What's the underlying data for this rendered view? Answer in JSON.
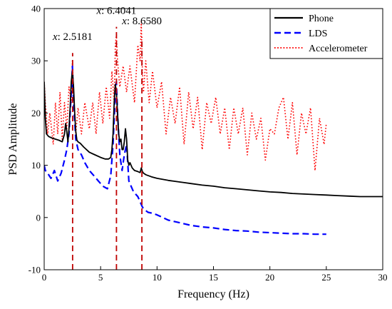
{
  "chart_data": {
    "type": "line",
    "xlabel": "Frequency (Hz)",
    "ylabel": "PSD Amplitude",
    "xlim": [
      0,
      30
    ],
    "ylim": [
      -10,
      40
    ],
    "xticks": [
      0,
      5,
      10,
      15,
      20,
      25,
      30
    ],
    "yticks": [
      -10,
      0,
      10,
      20,
      30,
      40
    ],
    "grid": false,
    "legend_position": "top-right",
    "annotations": [
      {
        "prefix": "x",
        "value": ": 2.5181",
        "x": 2.5181,
        "label_y": 34
      },
      {
        "prefix": "x",
        "value": ": 6.4041",
        "x": 6.4041,
        "label_y": 39
      },
      {
        "prefix": "x",
        "value": ": 8.6580",
        "x": 8.658,
        "label_y": 37
      }
    ],
    "series": [
      {
        "name": "Phone",
        "color": "#000000",
        "style": "solid",
        "x": [
          0,
          0.1,
          0.2,
          0.4,
          0.7,
          1.0,
          1.3,
          1.6,
          1.8,
          1.9,
          2.0,
          2.1,
          2.2,
          2.3,
          2.4,
          2.5,
          2.6,
          2.7,
          2.8,
          2.9,
          3.0,
          3.2,
          3.5,
          4.0,
          4.5,
          5.0,
          5.4,
          5.7,
          5.9,
          6.0,
          6.1,
          6.2,
          6.3,
          6.4,
          6.5,
          6.6,
          6.7,
          6.8,
          6.9,
          7.0,
          7.1,
          7.2,
          7.3,
          7.4,
          7.5,
          7.6,
          7.8,
          8.0,
          8.3,
          8.5,
          8.6,
          8.7,
          8.8,
          9.0,
          9.5,
          10,
          11,
          12,
          13,
          14,
          15,
          16,
          17,
          18,
          19,
          20,
          21,
          22,
          23,
          24,
          25,
          26,
          27,
          28,
          29,
          30
        ],
        "y": [
          26,
          19,
          16,
          15.5,
          15.2,
          15,
          14.8,
          14.5,
          16,
          18,
          16.5,
          14.5,
          17,
          21,
          26,
          28,
          25,
          20,
          16.5,
          14.8,
          14.5,
          14.2,
          13.5,
          12.5,
          12,
          11.5,
          11.2,
          11.2,
          11.5,
          13,
          16,
          22,
          25.5,
          24,
          20,
          16,
          14.5,
          15,
          13,
          13,
          14.5,
          17,
          15,
          11,
          10,
          10.5,
          9.5,
          9,
          8.8,
          8.6,
          9.5,
          8.8,
          8.5,
          8.2,
          7.8,
          7.5,
          7.1,
          6.8,
          6.5,
          6.2,
          6.0,
          5.7,
          5.5,
          5.3,
          5.1,
          4.9,
          4.8,
          4.6,
          4.5,
          4.4,
          4.3,
          4.2,
          4.1,
          4.0,
          4.0,
          4.0
        ]
      },
      {
        "name": "LDS",
        "color": "#0000ff",
        "style": "dashed",
        "x": [
          0,
          0.1,
          0.3,
          0.6,
          0.9,
          1.2,
          1.5,
          1.8,
          2.0,
          2.2,
          2.4,
          2.5,
          2.6,
          2.8,
          3.0,
          3.3,
          3.6,
          4.0,
          4.4,
          4.8,
          5.2,
          5.6,
          5.9,
          6.1,
          6.3,
          6.4,
          6.5,
          6.7,
          6.9,
          7.1,
          7.3,
          7.5,
          7.7,
          7.9,
          8.1,
          8.3,
          8.5,
          8.7,
          8.9,
          9.2,
          9.6,
          10,
          11,
          12,
          13,
          14,
          15,
          16,
          17,
          18,
          19,
          20,
          21,
          22,
          23,
          24,
          25
        ],
        "y": [
          10,
          9,
          8.5,
          7.5,
          9,
          7,
          8.5,
          11,
          13,
          16,
          24,
          29,
          22,
          15,
          13,
          12,
          10.5,
          9,
          8,
          7,
          6,
          5.5,
          8,
          14,
          24,
          26,
          20,
          12,
          9,
          12,
          14,
          7,
          6,
          5,
          4.5,
          4,
          3,
          2,
          1.5,
          1,
          0.8,
          0.5,
          -0.5,
          -1,
          -1.5,
          -1.8,
          -2,
          -2.3,
          -2.5,
          -2.6,
          -2.8,
          -2.9,
          -3.0,
          -3.1,
          -3.1,
          -3.2,
          -3.2
        ]
      },
      {
        "name": "Accelerometer",
        "color": "#ff0000",
        "style": "dotted",
        "x": [
          0,
          0.1,
          0.3,
          0.5,
          0.8,
          1.0,
          1.2,
          1.4,
          1.6,
          1.8,
          2.0,
          2.2,
          2.4,
          2.5,
          2.6,
          2.8,
          3.0,
          3.3,
          3.6,
          4.0,
          4.3,
          4.6,
          4.9,
          5.2,
          5.5,
          5.8,
          6.0,
          6.2,
          6.3,
          6.4,
          6.5,
          6.7,
          7.0,
          7.3,
          7.6,
          8.0,
          8.3,
          8.5,
          8.6,
          8.7,
          8.8,
          9.0,
          9.3,
          9.6,
          10.0,
          10.4,
          10.8,
          11.2,
          11.6,
          12.0,
          12.4,
          12.8,
          13.2,
          13.6,
          14.0,
          14.4,
          14.8,
          15.2,
          15.6,
          16.0,
          16.4,
          16.8,
          17.2,
          17.6,
          18.0,
          18.4,
          18.8,
          19.2,
          19.6,
          20.0,
          20.4,
          20.8,
          21.2,
          21.6,
          22.0,
          22.4,
          22.8,
          23.2,
          23.6,
          24.0,
          24.4,
          24.8,
          25.0
        ],
        "y": [
          26,
          22,
          16,
          20,
          14,
          22,
          16,
          24,
          15,
          22,
          17,
          25,
          22,
          30,
          24,
          16,
          21,
          16,
          22,
          17,
          22,
          16,
          24,
          18,
          25,
          19,
          28,
          22,
          33,
          35,
          30,
          25,
          29,
          24,
          29,
          22,
          33,
          30,
          37.5,
          28,
          24,
          30,
          22,
          28,
          21,
          26,
          16,
          23,
          18,
          25,
          14,
          24,
          17,
          23,
          13,
          22,
          18,
          23,
          16,
          21,
          13,
          21,
          16,
          21,
          12,
          20,
          15,
          19,
          11,
          17,
          16,
          21,
          23,
          15,
          22,
          12,
          20,
          16,
          21,
          9,
          19,
          14,
          18
        ]
      }
    ]
  }
}
